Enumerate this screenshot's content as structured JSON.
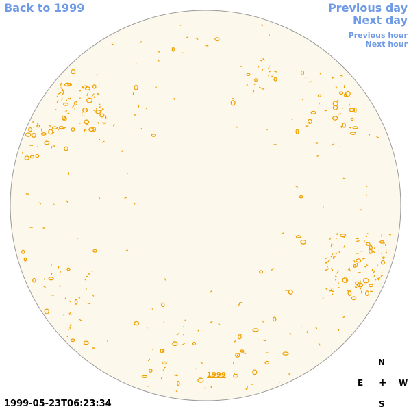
{
  "nav": {
    "back": "Back to 1999",
    "previous_day": "Previous day",
    "next_day": "Next day",
    "previous_hour": "Previous hour",
    "next_hour": "Next hour"
  },
  "year_label": "1999",
  "timestamp": "1999-05-23T06:23:34",
  "compass": {
    "n": "N",
    "e": "E",
    "plus": "+",
    "w": "W",
    "s": "S"
  },
  "colors": {
    "link": "#6f9ae6",
    "disk_fill": "#fdf8ec",
    "disk_stroke": "#9a9a9a",
    "feature": "#f0a000"
  }
}
